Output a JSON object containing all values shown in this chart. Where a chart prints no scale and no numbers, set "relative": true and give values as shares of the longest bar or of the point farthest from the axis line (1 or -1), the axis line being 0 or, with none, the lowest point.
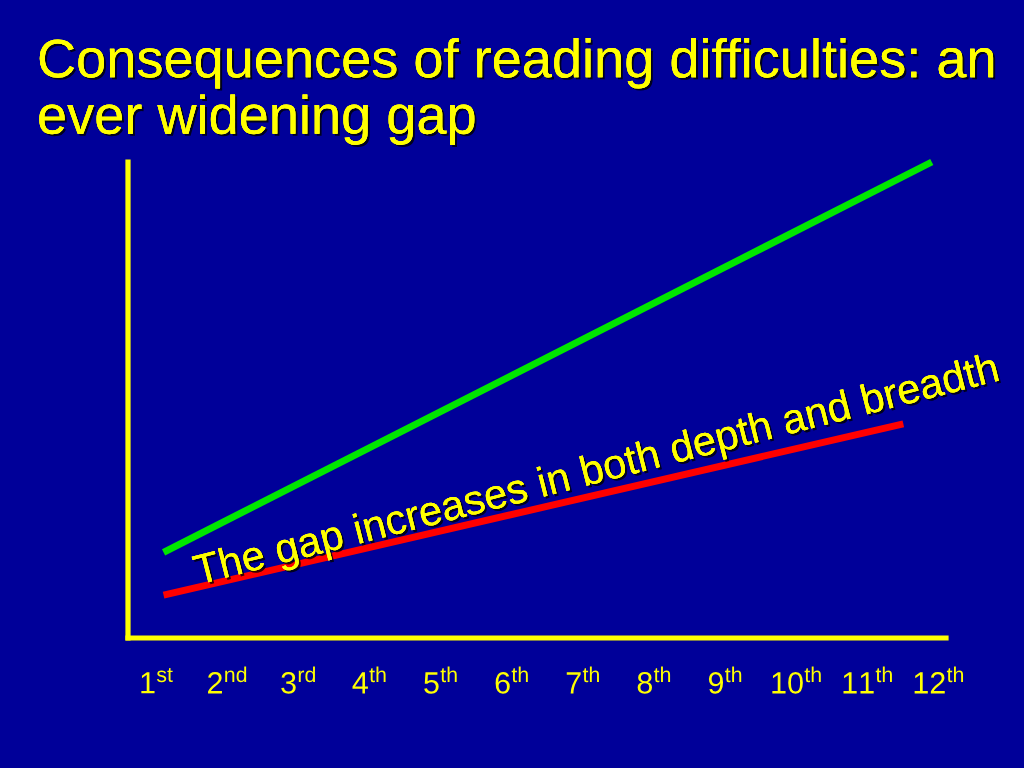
{
  "chart_data": {
    "type": "line",
    "title": "Consequences of reading difficulties: an ever widening gap",
    "relative": true,
    "xlim": [
      0.6,
      12.1
    ],
    "xticks": [
      {
        "value": 1,
        "label": "1$^{st}$"
      },
      {
        "value": 2,
        "label": "2$^{nd}$"
      },
      {
        "value": 3,
        "label": "3$^{rd}$"
      },
      {
        "value": 4,
        "label": "4$^{th}$"
      },
      {
        "value": 5,
        "label": "5$^{th}$"
      },
      {
        "value": 6,
        "label": "6$^{th}$"
      },
      {
        "value": 7,
        "label": "7$^{th}$"
      },
      {
        "value": 8,
        "label": "8$^{th}$"
      },
      {
        "value": 9,
        "label": "9$^{th}$"
      },
      {
        "value": 10,
        "label": "10$^{th}$"
      },
      {
        "value": 11,
        "label": "11$^{th}$"
      },
      {
        "value": 12,
        "label": "12$^{th}$"
      }
    ],
    "series": [
      {
        "color": "#00e600",
        "x": [
          1.1,
          11.9
        ],
        "values": [
          0.18,
          1
        ]
      },
      {
        "color": "#ff0000",
        "x": [
          1.1,
          11.5
        ],
        "values": [
          0.09,
          0.45
        ]
      }
    ],
    "annotations": [
      "The gap increases in both depth and breadth"
    ],
    "line_style": "solid",
    "marker": "none"
  }
}
